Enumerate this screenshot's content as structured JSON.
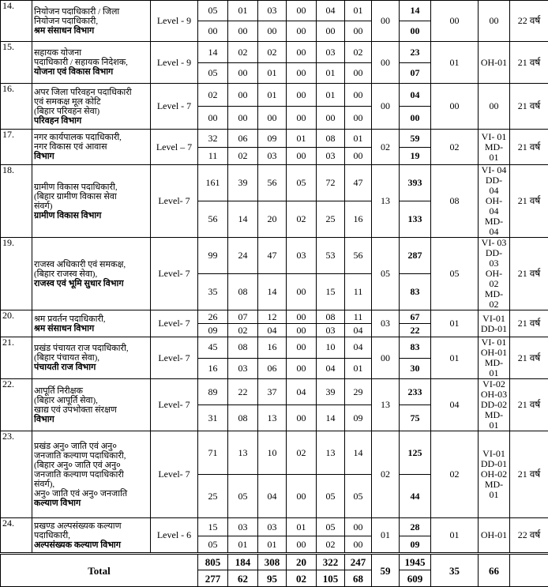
{
  "rows": [
    {
      "no": "14.",
      "post": [
        "नियोजन पदाधिकारी / जिला",
        "नियोजन पदाधिकारी,",
        "श्रम संसाधन विभाग"
      ],
      "level": "Level - 9",
      "r1": [
        "05",
        "01",
        "03",
        "00",
        "04",
        "01"
      ],
      "r2": [
        "00",
        "00",
        "00",
        "00",
        "00",
        "00"
      ],
      "c1": "00",
      "total": [
        "14",
        "00"
      ],
      "c2": "00",
      "c3": [
        "00"
      ],
      "age": "22 वर्ष"
    },
    {
      "no": "15.",
      "post": [
        "सहायक योजना",
        "पदाधिकारी / सहायक निदेशक,",
        "योजना एवं विकास विभाग"
      ],
      "level": "Level - 9",
      "r1": [
        "14",
        "02",
        "02",
        "00",
        "03",
        "02"
      ],
      "r2": [
        "05",
        "00",
        "01",
        "00",
        "01",
        "00"
      ],
      "c1": "00",
      "total": [
        "23",
        "07"
      ],
      "c2": "01",
      "c3": [
        "OH-01"
      ],
      "age": "21 वर्ष"
    },
    {
      "no": "16.",
      "post": [
        "अपर जिला परिवहन पदाधिकारी",
        "एवं समकक्ष मूल कोटि",
        "(बिहार परिवहन सेवा)",
        "परिवहन विभाग"
      ],
      "level": "Level - 7",
      "r1": [
        "02",
        "00",
        "01",
        "00",
        "01",
        "00"
      ],
      "r2": [
        "00",
        "00",
        "00",
        "00",
        "00",
        "00"
      ],
      "c1": "00",
      "total": [
        "04",
        "00"
      ],
      "c2": "00",
      "c3": [
        "00"
      ],
      "age": "21 वर्ष"
    },
    {
      "no": "17.",
      "post": [
        "नगर कार्यपालक पदाधिकारी,",
        "नगर विकास एवं आवास",
        "विभाग"
      ],
      "level": "Level – 7",
      "r1": [
        "32",
        "06",
        "09",
        "01",
        "08",
        "01"
      ],
      "r2": [
        "11",
        "02",
        "03",
        "00",
        "03",
        "00"
      ],
      "c1": "02",
      "total": [
        "59",
        "19"
      ],
      "c2": "02",
      "c3": [
        "VI- 01",
        "MD-01"
      ],
      "age": "21 वर्ष"
    },
    {
      "no": "18.",
      "post": [
        "ग्रामीण विकास पदाधिकारी,",
        "(बिहार ग्रामीण विकास सेवा",
        "संवर्ग)",
        "ग्रामीण विकास विभाग"
      ],
      "level": "Level- 7",
      "r1": [
        "161",
        "39",
        "56",
        "05",
        "72",
        "47"
      ],
      "r2": [
        "56",
        "14",
        "20",
        "02",
        "25",
        "16"
      ],
      "c1": "13",
      "total": [
        "393",
        "133"
      ],
      "c2": "08",
      "c3": [
        "VI- 04",
        "DD- 04",
        "OH- 04",
        "MD- 04"
      ],
      "age": "21 वर्ष"
    },
    {
      "no": "19.",
      "post": [
        "राजस्व अधिकारी एवं समकक्ष,",
        "(बिहार राजस्व सेवा),",
        "राजस्व एवं भूमि सुधार विभाग"
      ],
      "level": "Level- 7",
      "r1": [
        "99",
        "24",
        "47",
        "03",
        "53",
        "56"
      ],
      "r2": [
        "35",
        "08",
        "14",
        "00",
        "15",
        "11"
      ],
      "c1": "05",
      "total": [
        "287",
        "83"
      ],
      "c2": "05",
      "c3": [
        "VI- 03",
        "DD- 03",
        "OH- 02",
        "MD- 02"
      ],
      "age": "21 वर्ष"
    },
    {
      "no": "20.",
      "post": [
        "श्रम प्रवर्तन पदाधिकारी,",
        "श्रम संसाधन विभाग"
      ],
      "level": "Level- 7",
      "r1": [
        "26",
        "07",
        "12",
        "00",
        "08",
        "11"
      ],
      "r2": [
        "09",
        "02",
        "04",
        "00",
        "03",
        "04"
      ],
      "c1": "03",
      "total": [
        "67",
        "22"
      ],
      "c2": "01",
      "c3": [
        "VI-01",
        "DD-01"
      ],
      "age": "21 वर्ष"
    },
    {
      "no": "21.",
      "post": [
        "प्रखंड पंचायत राज पदाधिकारी,",
        "(बिहार पंचायत सेवा),",
        "पंचायती राज विभाग"
      ],
      "level": "Level- 7",
      "r1": [
        "45",
        "08",
        "16",
        "00",
        "10",
        "04"
      ],
      "r2": [
        "16",
        "03",
        "06",
        "00",
        "04",
        "01"
      ],
      "c1": "00",
      "total": [
        "83",
        "30"
      ],
      "c2": "01",
      "c3": [
        "VI- 01",
        "OH-01",
        "MD-01"
      ],
      "age": "21 वर्ष"
    },
    {
      "no": "22.",
      "post": [
        "आपूर्ति निरीक्षक",
        "(बिहार आपूर्ति सेवा),",
        "खाद्य एवं उपभोक्ता संरक्षण",
        "विभाग"
      ],
      "level": "Level- 7",
      "r1": [
        "89",
        "22",
        "37",
        "04",
        "39",
        "29"
      ],
      "r2": [
        "31",
        "08",
        "13",
        "00",
        "14",
        "09"
      ],
      "c1": "13",
      "total": [
        "233",
        "75"
      ],
      "c2": "04",
      "c3": [
        "VI-02",
        "OH-03",
        "DD-02",
        "MD-01"
      ],
      "age": "21 वर्ष"
    },
    {
      "no": "23.",
      "post": [
        "प्रखंड अनु० जाति एवं अनु०",
        "जनजाति कल्याण पदाधिकारी,",
        "(बिहार अनु० जाति एवं अनु०",
        "जनजाति कल्याण पदाधिकारी",
        "संवर्ग),",
        "अनु० जाति एवं अनु० जनजाति",
        "कल्याण विभाग"
      ],
      "level": "Level- 7",
      "r1": [
        "71",
        "13",
        "10",
        "02",
        "13",
        "14"
      ],
      "r2": [
        "25",
        "05",
        "04",
        "00",
        "05",
        "05"
      ],
      "c1": "02",
      "total": [
        "125",
        "44"
      ],
      "c2": "02",
      "c3": [
        "VI-01",
        "DD-01",
        "OH-02",
        "MD-01"
      ],
      "age": "21 वर्ष"
    },
    {
      "no": "24.",
      "post": [
        "प्रखण्ड अल्पसंख्यक कल्याण",
        "पदाधिकारी,",
        "अल्पसंख्यक कल्याण विभाग"
      ],
      "level": "Level - 6",
      "r1": [
        "15",
        "03",
        "03",
        "01",
        "05",
        "00"
      ],
      "r2": [
        "05",
        "01",
        "01",
        "00",
        "02",
        "00"
      ],
      "c1": "01",
      "total": [
        "28",
        "09"
      ],
      "c2": "01",
      "c3": [
        "OH-01"
      ],
      "age": "22 वर्ष"
    }
  ],
  "total": {
    "label": "Total",
    "r1": [
      "805",
      "184",
      "308",
      "20",
      "322",
      "247"
    ],
    "r2": [
      "277",
      "62",
      "95",
      "02",
      "105",
      "68"
    ],
    "c1": "59",
    "total": [
      "1945",
      "609"
    ],
    "c2": "35",
    "c3": "66"
  }
}
